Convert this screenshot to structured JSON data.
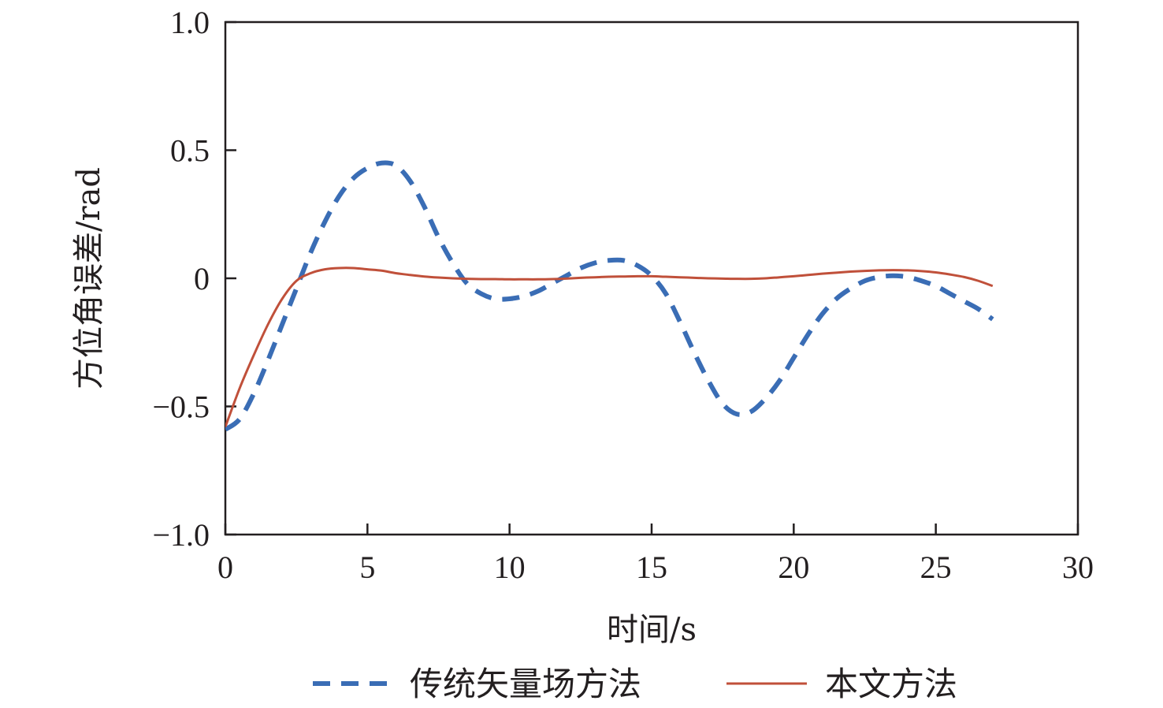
{
  "chart_data": {
    "type": "line",
    "title": "",
    "xlabel": "时间/s",
    "ylabel": "方位角误差/rad",
    "xlim": [
      0,
      30
    ],
    "ylim": [
      -1.0,
      1.0
    ],
    "grid": false,
    "legend_position": "bottom",
    "xticks": [
      0,
      5,
      10,
      15,
      20,
      25,
      30
    ],
    "xtick_labels": [
      "0",
      "5",
      "10",
      "15",
      "20",
      "25",
      "30"
    ],
    "yticks": [
      1.0,
      0.5,
      0,
      -0.5,
      -1.0
    ],
    "ytick_labels": [
      "1.0",
      "0.5",
      "0",
      "−0.5",
      "−1.0"
    ],
    "series": [
      {
        "name": "传统矢量场方法",
        "color": "#3a6db5",
        "style": "dashed",
        "x": [
          0,
          0.5,
          1,
          1.5,
          2,
          2.5,
          3,
          3.5,
          4,
          4.5,
          5,
          5.5,
          6,
          6.5,
          7,
          7.5,
          8,
          8.5,
          9,
          9.5,
          10,
          10.5,
          11,
          11.5,
          12,
          12.5,
          13,
          13.5,
          14,
          14.5,
          15,
          15.5,
          16,
          16.5,
          17,
          17.5,
          18,
          18.5,
          19,
          19.5,
          20,
          20.5,
          21,
          21.5,
          22,
          22.5,
          23,
          23.5,
          24,
          24.5,
          25,
          25.5,
          26,
          26.5,
          27
        ],
        "y": [
          -0.59,
          -0.55,
          -0.45,
          -0.32,
          -0.18,
          -0.04,
          0.1,
          0.22,
          0.32,
          0.39,
          0.43,
          0.45,
          0.44,
          0.38,
          0.28,
          0.16,
          0.06,
          -0.02,
          -0.06,
          -0.08,
          -0.08,
          -0.07,
          -0.05,
          -0.02,
          0.01,
          0.04,
          0.06,
          0.07,
          0.07,
          0.05,
          0.01,
          -0.06,
          -0.17,
          -0.29,
          -0.4,
          -0.49,
          -0.53,
          -0.52,
          -0.47,
          -0.4,
          -0.31,
          -0.22,
          -0.14,
          -0.08,
          -0.04,
          -0.01,
          0.005,
          0.01,
          0.005,
          -0.01,
          -0.03,
          -0.06,
          -0.09,
          -0.12,
          -0.16
        ]
      },
      {
        "name": "本文方法",
        "color": "#c0503a",
        "style": "solid",
        "x": [
          0,
          0.5,
          1,
          1.5,
          2,
          2.5,
          3,
          3.5,
          4,
          4.5,
          5,
          5.5,
          6,
          6.5,
          7,
          7.5,
          8,
          8.5,
          9,
          9.5,
          10,
          10.5,
          11,
          11.5,
          12,
          12.5,
          13,
          13.5,
          14,
          14.5,
          15,
          15.5,
          16,
          16.5,
          17,
          17.5,
          18,
          18.5,
          19,
          19.5,
          20,
          20.5,
          21,
          21.5,
          22,
          22.5,
          23,
          23.5,
          24,
          24.5,
          25,
          25.5,
          26,
          26.5,
          27
        ],
        "y": [
          -0.58,
          -0.43,
          -0.3,
          -0.18,
          -0.08,
          -0.01,
          0.02,
          0.035,
          0.04,
          0.04,
          0.035,
          0.03,
          0.02,
          0.013,
          0.007,
          0.003,
          0.0,
          -0.002,
          -0.003,
          -0.003,
          -0.004,
          -0.004,
          -0.004,
          -0.003,
          -0.001,
          0.002,
          0.004,
          0.006,
          0.007,
          0.008,
          0.008,
          0.006,
          0.004,
          0.002,
          0.0,
          -0.001,
          -0.002,
          -0.002,
          0.0,
          0.004,
          0.008,
          0.013,
          0.018,
          0.022,
          0.026,
          0.029,
          0.031,
          0.032,
          0.031,
          0.028,
          0.023,
          0.015,
          0.005,
          -0.01,
          -0.03
        ]
      }
    ]
  }
}
